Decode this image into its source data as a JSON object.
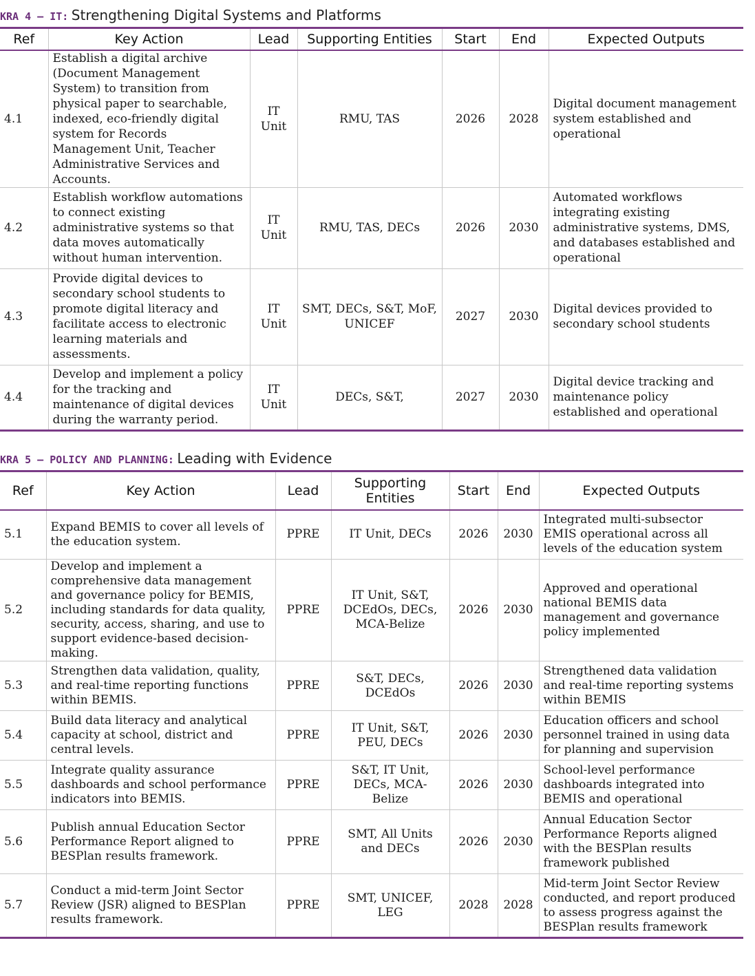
{
  "kra4": {
    "label": "KRA 4 – IT:",
    "subtitle": "Strengthening Digital Systems and Platforms",
    "headers": [
      "Ref",
      "Key Action",
      "Lead",
      "Supporting Entities",
      "Start",
      "End",
      "Expected Outputs"
    ],
    "rows": [
      {
        "ref": "4.1",
        "action": "Establish a digital archive (Document Management System) to transition from physical paper to searchable, indexed, eco-friendly digital system for Records Management Unit, Teacher Administrative Services and Accounts.",
        "lead": "IT Unit",
        "support": "RMU, TAS",
        "start": "2026",
        "end": "2028",
        "output": "Digital document management system established and operational"
      },
      {
        "ref": "4.2",
        "action": "Establish workflow automations to connect existing administrative systems so that data moves automatically without human intervention.",
        "lead": "IT Unit",
        "support": "RMU, TAS, DECs",
        "start": "2026",
        "end": "2030",
        "output": "Automated workflows integrating existing administrative systems, DMS, and databases established and operational"
      },
      {
        "ref": "4.3",
        "action": "Provide digital devices to secondary school students to promote digital literacy and facilitate access to electronic learning materials and assessments.",
        "lead": "IT Unit",
        "support": "SMT, DECs, S&T, MoF, UNICEF",
        "start": "2027",
        "end": "2030",
        "output": "Digital devices provided to secondary school students"
      },
      {
        "ref": "4.4",
        "action": "Develop and implement a policy for the tracking and maintenance of digital devices during the warranty period.",
        "lead": "IT Unit",
        "support": "DECs, S&T,",
        "start": "2027",
        "end": "2030",
        "output": "Digital device tracking and maintenance policy established and operational"
      }
    ]
  },
  "kra5": {
    "label": "KRA 5 – POLICY AND PLANNING:",
    "subtitle": "Leading with Evidence",
    "headers": [
      "Ref",
      "Key Action",
      "Lead",
      "Supporting Entities",
      "Start",
      "End",
      "Expected Outputs"
    ],
    "rows": [
      {
        "ref": "5.1",
        "action": "Expand BEMIS to cover all levels of the education system.",
        "lead": "PPRE",
        "support": "IT Unit, DECs",
        "start": "2026",
        "end": "2030",
        "output": "Integrated multi-subsector EMIS operational across all levels of the education system"
      },
      {
        "ref": "5.2",
        "action": "Develop and implement a comprehensive data management and governance policy for BEMIS, including standards for data quality, security, access, sharing, and use to support evidence-based decision-making.",
        "lead": "PPRE",
        "support": "IT Unit, S&T, DCEdOs, DECs, MCA-Belize",
        "start": "2026",
        "end": "2030",
        "output": "Approved and operational national BEMIS data management and governance policy implemented"
      },
      {
        "ref": "5.3",
        "action": "Strengthen data validation, quality, and real-time reporting functions within BEMIS.",
        "lead": "PPRE",
        "support": "S&T, DECs, DCEdOs",
        "start": "2026",
        "end": "2030",
        "output": "Strengthened data validation and real-time reporting systems within BEMIS"
      },
      {
        "ref": "5.4",
        "action": "Build data literacy and analytical capacity at school, district and central levels.",
        "lead": "PPRE",
        "support": "IT Unit, S&T, PEU, DECs",
        "start": "2026",
        "end": "2030",
        "output": "Education officers and school personnel trained in using data for planning and supervision"
      },
      {
        "ref": "5.5",
        "action": "Integrate quality assurance dashboards and school performance indicators into BEMIS.",
        "lead": "PPRE",
        "support": "S&T, IT Unit, DECs, MCA-Belize",
        "start": "2026",
        "end": "2030",
        "output": "School-level performance dashboards integrated into BEMIS and operational"
      },
      {
        "ref": "5.6",
        "action": "Publish annual Education Sector Performance Report aligned to BESPlan results framework.",
        "lead": "PPRE",
        "support": "SMT, All Units and DECs",
        "start": "2026",
        "end": "2030",
        "output": "Annual Education Sector Performance Reports aligned with the BESPlan results framework published"
      },
      {
        "ref": "5.7",
        "action": "Conduct a mid-term Joint Sector Review (JSR) aligned to BESPlan results framework.",
        "lead": "PPRE",
        "support": "SMT, UNICEF, LEG",
        "start": "2028",
        "end": "2028",
        "output": "Mid-term Joint Sector Review conducted, and report produced to assess progress against the BESPlan results framework"
      }
    ]
  }
}
